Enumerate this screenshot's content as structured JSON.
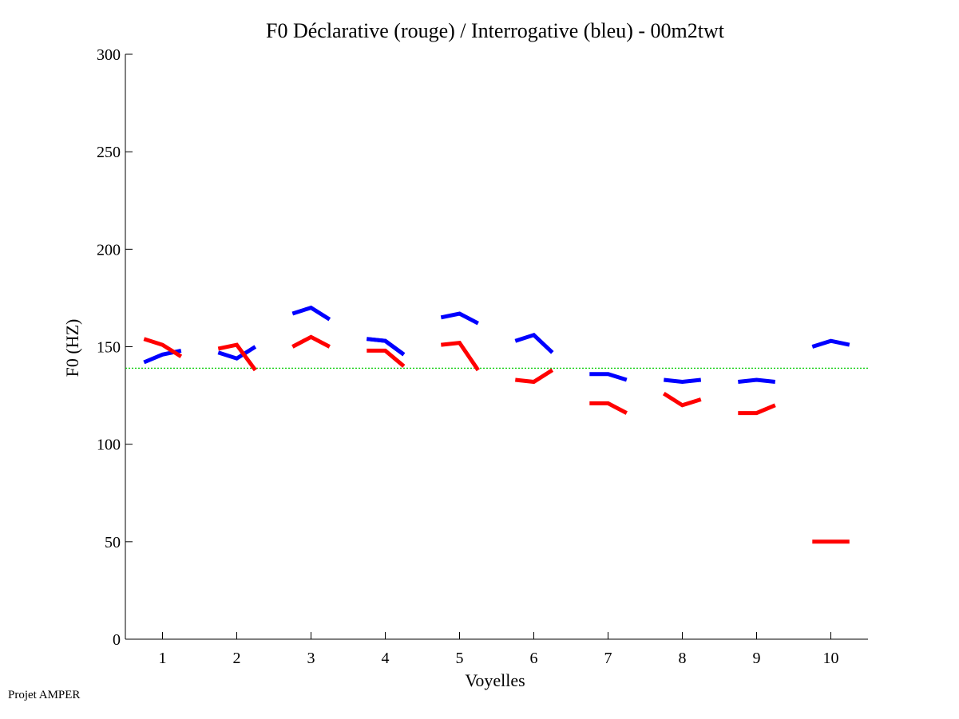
{
  "chart_data": {
    "type": "line",
    "title": "F0 Déclarative (rouge) / Interrogative (bleu) - 00m2twt",
    "xlabel": "Voyelles",
    "ylabel": "F0 (HZ)",
    "xlim": [
      0.5,
      10.5
    ],
    "ylim": [
      0,
      300
    ],
    "xticks": [
      "1",
      "2",
      "3",
      "4",
      "5",
      "6",
      "7",
      "8",
      "9",
      "10"
    ],
    "yticks": [
      "0",
      "50",
      "100",
      "150",
      "200",
      "250",
      "300"
    ],
    "reference_line": {
      "y": 139,
      "color": "#00cc00",
      "style": "dotted"
    },
    "series": [
      {
        "color": "#0000ff",
        "segments": [
          [
            [
              0.75,
              142
            ],
            [
              1.0,
              146
            ],
            [
              1.25,
              148
            ]
          ],
          [
            [
              1.75,
              147
            ],
            [
              2.0,
              144
            ],
            [
              2.25,
              150
            ]
          ],
          [
            [
              2.75,
              167
            ],
            [
              3.0,
              170
            ],
            [
              3.25,
              164
            ]
          ],
          [
            [
              3.75,
              154
            ],
            [
              4.0,
              153
            ],
            [
              4.25,
              146
            ]
          ],
          [
            [
              3.75,
              154
            ],
            [
              4.0,
              153
            ],
            [
              4.25,
              146
            ]
          ],
          [
            [
              4.75,
              165
            ],
            [
              5.0,
              167
            ],
            [
              5.25,
              162
            ]
          ],
          [
            [
              5.75,
              153
            ],
            [
              6.0,
              156
            ],
            [
              6.25,
              147
            ]
          ],
          [
            [
              6.75,
              136
            ],
            [
              7.0,
              136
            ],
            [
              7.25,
              133
            ]
          ],
          [
            [
              7.75,
              133
            ],
            [
              8.0,
              132
            ],
            [
              8.25,
              133
            ]
          ],
          [
            [
              8.75,
              132
            ],
            [
              9.0,
              133
            ],
            [
              9.25,
              132
            ]
          ],
          [
            [
              9.75,
              150
            ],
            [
              10.0,
              153
            ],
            [
              10.25,
              151
            ]
          ]
        ]
      },
      {
        "color": "#ff0000",
        "segments": [
          [
            [
              0.75,
              154
            ],
            [
              1.0,
              151
            ],
            [
              1.25,
              145
            ]
          ],
          [
            [
              1.75,
              149
            ],
            [
              2.0,
              151
            ],
            [
              2.25,
              138
            ]
          ],
          [
            [
              2.75,
              150
            ],
            [
              3.0,
              155
            ],
            [
              3.25,
              150
            ]
          ],
          [
            [
              3.75,
              148
            ],
            [
              4.0,
              148
            ],
            [
              4.25,
              140
            ]
          ],
          [
            [
              4.75,
              151
            ],
            [
              5.0,
              152
            ],
            [
              5.25,
              138
            ]
          ],
          [
            [
              5.75,
              133
            ],
            [
              6.0,
              132
            ],
            [
              6.25,
              138
            ]
          ],
          [
            [
              6.75,
              121
            ],
            [
              7.0,
              121
            ],
            [
              7.25,
              116
            ]
          ],
          [
            [
              7.75,
              126
            ],
            [
              8.0,
              120
            ],
            [
              8.25,
              123
            ]
          ],
          [
            [
              8.75,
              116
            ],
            [
              9.0,
              116
            ],
            [
              9.25,
              120
            ]
          ],
          [
            [
              9.75,
              50
            ],
            [
              10.0,
              50
            ],
            [
              10.25,
              50
            ]
          ]
        ]
      }
    ]
  },
  "footer": {
    "label": "Projet AMPER"
  }
}
